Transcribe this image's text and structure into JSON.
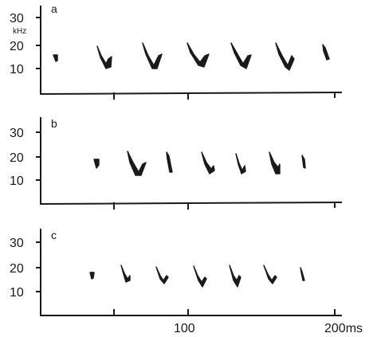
{
  "figure": {
    "y_unit": "kHz",
    "x_tick_labels": [
      "100",
      "200ms"
    ],
    "panels": [
      {
        "label": "a",
        "y_tick_labels": [
          "30",
          "20",
          "10"
        ],
        "calls": 7
      },
      {
        "label": "b",
        "y_tick_labels": [
          "30",
          "20",
          "10"
        ],
        "calls": 7
      },
      {
        "label": "c",
        "y_tick_labels": [
          "30",
          "20",
          "10"
        ],
        "calls": 7
      }
    ]
  }
}
